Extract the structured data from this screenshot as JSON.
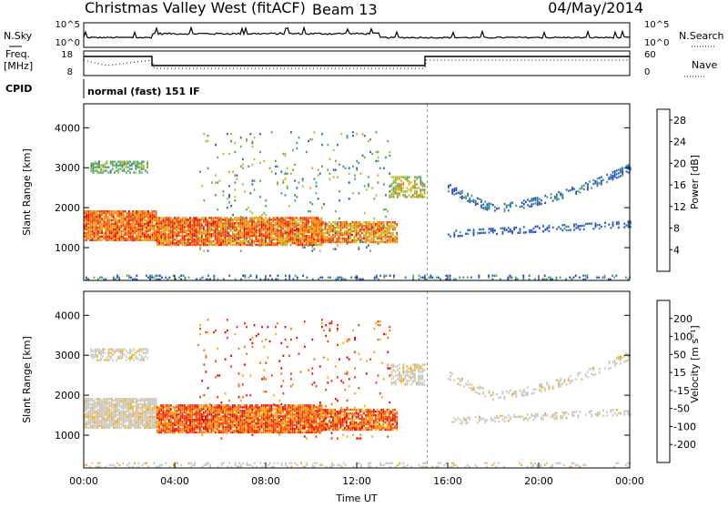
{
  "header": {
    "station": "Christmas Valley West (fitACF)",
    "beam": "Beam 13",
    "date": "04/May/2014"
  },
  "top_panels": {
    "nsky_label": "N.Sky",
    "nsky_ticks": [
      "10^5",
      "10^0"
    ],
    "nsearch_label": "N.Search",
    "nsearch_ticks": [
      "10^5",
      "10^0"
    ],
    "freq_label": "Freq.",
    "freq_unit": "[MHz]",
    "freq_ticks": [
      "18",
      "8"
    ],
    "nave_label": "Nave",
    "nave_ticks": [
      "60",
      "0"
    ],
    "cpid_label": "CPID",
    "cpid_value": "normal (fast) 151 IF"
  },
  "colors": {
    "power": [
      "#1f3fe0",
      "#2a66b8",
      "#3f9a70",
      "#58b050",
      "#b8c020",
      "#f0a000",
      "#ff7000",
      "#ff3000",
      "#e80000"
    ],
    "velocity": [
      "#1f3fe0",
      "#2a66b8",
      "#3f9a70",
      "#58b050",
      "#c8c8c0",
      "#ffa800",
      "#ff7000",
      "#ff3000",
      "#e80000"
    ]
  },
  "chart_data": [
    {
      "type": "heatmap",
      "name": "power",
      "xlabel": "",
      "ylabel": "Slant Range [km]",
      "x_ticks": [
        "00:00",
        "04:00",
        "08:00",
        "12:00",
        "16:00",
        "20:00",
        "00:00"
      ],
      "x_range_hours": [
        0,
        24
      ],
      "y_ticks": [
        1000,
        2000,
        3000,
        4000
      ],
      "ylim": [
        180,
        4600
      ],
      "colorbar_label": "Power [dB]",
      "colorbar_ticks": [
        4,
        8,
        12,
        16,
        20,
        24,
        28
      ],
      "colorbar_range": [
        0,
        30
      ]
    },
    {
      "type": "heatmap",
      "name": "velocity",
      "xlabel": "Time UT",
      "ylabel": "Slant Range [km]",
      "x_ticks": [
        "00:00",
        "04:00",
        "08:00",
        "12:00",
        "16:00",
        "20:00",
        "00:00"
      ],
      "x_range_hours": [
        0,
        24
      ],
      "y_ticks": [
        1000,
        2000,
        3000,
        4000
      ],
      "ylim": [
        180,
        4600
      ],
      "colorbar_label": "Velocity [m s⁻¹]",
      "colorbar_ticks": [
        200,
        100,
        50,
        15,
        -15,
        -50,
        -100,
        -200
      ]
    }
  ]
}
